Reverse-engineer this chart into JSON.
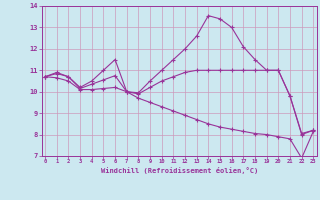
{
  "xlabel": "Windchill (Refroidissement éolien,°C)",
  "bg_color": "#cce8f0",
  "grid_color": "#cc99bb",
  "line_color": "#993399",
  "x_min": 0,
  "x_max": 23,
  "y_min": 7,
  "y_max": 14,
  "line1_x": [
    0,
    1,
    2,
    3,
    4,
    5,
    6,
    7,
    8,
    9,
    10,
    11,
    12,
    13,
    14,
    15,
    16,
    17,
    18,
    19,
    20,
    21,
    22,
    23
  ],
  "line1_y": [
    10.7,
    10.9,
    10.7,
    10.2,
    10.5,
    11.0,
    11.5,
    10.0,
    9.95,
    10.5,
    11.0,
    11.5,
    12.0,
    12.6,
    13.55,
    13.4,
    13.0,
    12.1,
    11.5,
    11.0,
    11.0,
    9.8,
    8.0,
    8.2
  ],
  "line2_x": [
    0,
    1,
    2,
    3,
    4,
    5,
    6,
    7,
    8,
    9,
    10,
    11,
    12,
    13,
    14,
    15,
    16,
    17,
    18,
    19,
    20,
    21,
    22,
    23
  ],
  "line2_y": [
    10.7,
    10.85,
    10.7,
    10.15,
    10.35,
    10.55,
    10.75,
    10.0,
    9.9,
    10.2,
    10.5,
    10.7,
    10.9,
    11.0,
    11.0,
    11.0,
    11.0,
    11.0,
    11.0,
    11.0,
    11.0,
    9.8,
    8.05,
    8.2
  ],
  "line3_x": [
    0,
    1,
    2,
    3,
    4,
    5,
    6,
    7,
    8,
    9,
    10,
    11,
    12,
    13,
    14,
    15,
    16,
    17,
    18,
    19,
    20,
    21,
    22,
    23
  ],
  "line3_y": [
    10.7,
    10.65,
    10.5,
    10.1,
    10.1,
    10.15,
    10.2,
    10.0,
    9.7,
    9.5,
    9.3,
    9.1,
    8.9,
    8.7,
    8.5,
    8.35,
    8.25,
    8.15,
    8.05,
    8.0,
    7.9,
    7.8,
    6.9,
    8.15
  ]
}
